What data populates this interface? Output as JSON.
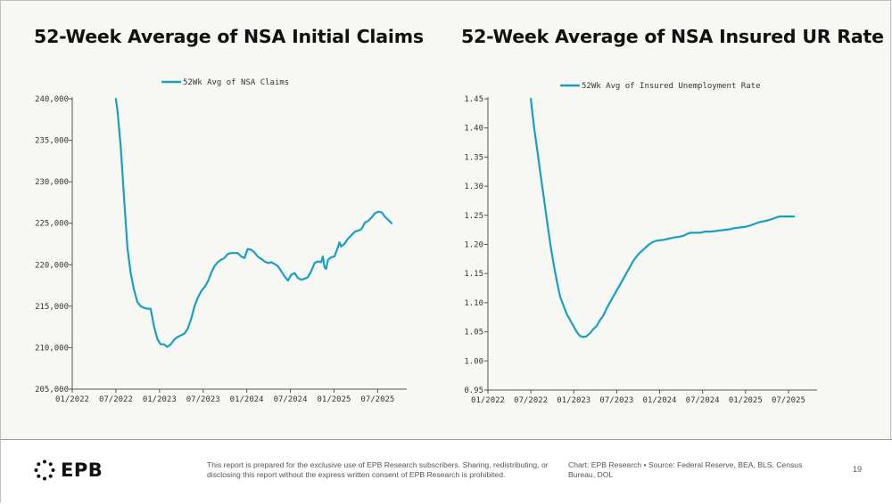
{
  "charts": [
    {
      "title": "52-Week Average of NSA Initial Claims"
    },
    {
      "title": "52-Week Average of NSA Insured UR Rate"
    }
  ],
  "colors": {
    "series": "#1a9fc4",
    "axis": "#555555",
    "grid": "#cfcfcf",
    "text": "#333333"
  },
  "chart_data": [
    {
      "type": "line",
      "title": "52-Week Average of NSA Initial Claims",
      "xlabel": "",
      "ylabel": "",
      "ylim": [
        205000,
        240000
      ],
      "xlim": [
        "2022-01",
        "2025-11"
      ],
      "x_ticks": [
        "01/2022",
        "07/2022",
        "01/2023",
        "07/2023",
        "01/2024",
        "07/2024",
        "01/2025",
        "07/2025"
      ],
      "y_ticks": [
        "205,000",
        "210,000",
        "215,000",
        "220,000",
        "225,000",
        "230,000",
        "235,000",
        "240,000"
      ],
      "legend_position": "top-center",
      "grid": false,
      "series": [
        {
          "name": "52Wk Avg of NSA Claims",
          "points": [
            [
              "2022-07-01",
              240000
            ],
            [
              "2022-07-08",
              238500
            ],
            [
              "2022-07-22",
              234000
            ],
            [
              "2022-08-05",
              228000
            ],
            [
              "2022-08-19",
              222000
            ],
            [
              "2022-09-02",
              219000
            ],
            [
              "2022-09-16",
              217000
            ],
            [
              "2022-09-30",
              215500
            ],
            [
              "2022-10-14",
              215000
            ],
            [
              "2022-10-28",
              214800
            ],
            [
              "2022-11-11",
              214700
            ],
            [
              "2022-11-25",
              214700
            ],
            [
              "2022-12-09",
              212500
            ],
            [
              "2022-12-23",
              211000
            ],
            [
              "2023-01-06",
              210400
            ],
            [
              "2023-01-20",
              210400
            ],
            [
              "2023-02-03",
              210100
            ],
            [
              "2023-02-17",
              210400
            ],
            [
              "2023-03-03",
              211000
            ],
            [
              "2023-03-17",
              211300
            ],
            [
              "2023-03-31",
              211500
            ],
            [
              "2023-04-14",
              211700
            ],
            [
              "2023-04-28",
              212300
            ],
            [
              "2023-05-12",
              213500
            ],
            [
              "2023-05-26",
              215000
            ],
            [
              "2023-06-09",
              216000
            ],
            [
              "2023-06-23",
              216800
            ],
            [
              "2023-07-07",
              217300
            ],
            [
              "2023-07-21",
              218000
            ],
            [
              "2023-08-04",
              219000
            ],
            [
              "2023-08-18",
              219800
            ],
            [
              "2023-09-01",
              220300
            ],
            [
              "2023-09-15",
              220600
            ],
            [
              "2023-09-29",
              220800
            ],
            [
              "2023-10-13",
              221300
            ],
            [
              "2023-10-27",
              221400
            ],
            [
              "2023-11-10",
              221400
            ],
            [
              "2023-11-24",
              221400
            ],
            [
              "2023-12-08",
              221000
            ],
            [
              "2023-12-22",
              220800
            ],
            [
              "2024-01-05",
              221900
            ],
            [
              "2024-01-19",
              221800
            ],
            [
              "2024-02-02",
              221500
            ],
            [
              "2024-02-16",
              221000
            ],
            [
              "2024-03-01",
              220700
            ],
            [
              "2024-03-15",
              220400
            ],
            [
              "2024-03-29",
              220200
            ],
            [
              "2024-04-12",
              220300
            ],
            [
              "2024-04-26",
              220100
            ],
            [
              "2024-05-10",
              219800
            ],
            [
              "2024-05-24",
              219200
            ],
            [
              "2024-06-07",
              218600
            ],
            [
              "2024-06-21",
              218100
            ],
            [
              "2024-07-05",
              218800
            ],
            [
              "2024-07-19",
              219000
            ],
            [
              "2024-08-02",
              218400
            ],
            [
              "2024-08-16",
              218200
            ],
            [
              "2024-08-30",
              218300
            ],
            [
              "2024-09-13",
              218500
            ],
            [
              "2024-09-27",
              219200
            ],
            [
              "2024-10-11",
              220200
            ],
            [
              "2024-10-25",
              220400
            ],
            [
              "2024-11-08",
              220300
            ],
            [
              "2024-11-15",
              221000
            ],
            [
              "2024-11-22",
              219700
            ],
            [
              "2024-11-29",
              219500
            ],
            [
              "2024-12-06",
              220600
            ],
            [
              "2024-12-20",
              220900
            ],
            [
              "2025-01-03",
              221000
            ],
            [
              "2025-01-17",
              222100
            ],
            [
              "2025-01-24",
              222700
            ],
            [
              "2025-01-31",
              222200
            ],
            [
              "2025-02-14",
              222500
            ],
            [
              "2025-02-28",
              223100
            ],
            [
              "2025-03-14",
              223600
            ],
            [
              "2025-03-28",
              224000
            ],
            [
              "2025-04-11",
              224100
            ],
            [
              "2025-04-25",
              224300
            ],
            [
              "2025-05-09",
              225100
            ],
            [
              "2025-05-23",
              225300
            ],
            [
              "2025-06-06",
              225700
            ],
            [
              "2025-06-20",
              226200
            ],
            [
              "2025-07-04",
              226400
            ],
            [
              "2025-07-18",
              226300
            ],
            [
              "2025-08-01",
              225800
            ],
            [
              "2025-08-15",
              225400
            ],
            [
              "2025-08-29",
              225000
            ]
          ]
        }
      ]
    },
    {
      "type": "line",
      "title": "52-Week Average of NSA Insured UR Rate",
      "xlabel": "",
      "ylabel": "",
      "ylim": [
        0.95,
        1.45
      ],
      "xlim": [
        "2022-01",
        "2025-11"
      ],
      "x_ticks": [
        "01/2022",
        "07/2022",
        "01/2023",
        "07/2023",
        "01/2024",
        "07/2024",
        "01/2025",
        "07/2025"
      ],
      "y_ticks": [
        "0.95",
        "1.00",
        "1.05",
        "1.10",
        "1.15",
        "1.20",
        "1.25",
        "1.30",
        "1.35",
        "1.40",
        "1.45"
      ],
      "legend_position": "top-center",
      "grid": false,
      "series": [
        {
          "name": "52Wk Avg of Insured Unemployment Rate",
          "points": [
            [
              "2022-07-01",
              1.45
            ],
            [
              "2022-07-15",
              1.4
            ],
            [
              "2022-07-29",
              1.36
            ],
            [
              "2022-08-12",
              1.32
            ],
            [
              "2022-08-26",
              1.28
            ],
            [
              "2022-09-09",
              1.24
            ],
            [
              "2022-09-23",
              1.2
            ],
            [
              "2022-10-07",
              1.165
            ],
            [
              "2022-10-21",
              1.135
            ],
            [
              "2022-11-04",
              1.11
            ],
            [
              "2022-11-18",
              1.095
            ],
            [
              "2022-12-02",
              1.08
            ],
            [
              "2022-12-16",
              1.07
            ],
            [
              "2022-12-30",
              1.06
            ],
            [
              "2023-01-13",
              1.05
            ],
            [
              "2023-01-27",
              1.043
            ],
            [
              "2023-02-10",
              1.041
            ],
            [
              "2023-02-24",
              1.042
            ],
            [
              "2023-03-10",
              1.048
            ],
            [
              "2023-03-24",
              1.055
            ],
            [
              "2023-04-07",
              1.06
            ],
            [
              "2023-04-21",
              1.07
            ],
            [
              "2023-05-05",
              1.078
            ],
            [
              "2023-05-19",
              1.09
            ],
            [
              "2023-06-02",
              1.1
            ],
            [
              "2023-06-16",
              1.11
            ],
            [
              "2023-06-30",
              1.12
            ],
            [
              "2023-07-14",
              1.13
            ],
            [
              "2023-07-28",
              1.14
            ],
            [
              "2023-08-11",
              1.15
            ],
            [
              "2023-08-25",
              1.16
            ],
            [
              "2023-09-08",
              1.17
            ],
            [
              "2023-09-22",
              1.178
            ],
            [
              "2023-10-06",
              1.185
            ],
            [
              "2023-10-20",
              1.19
            ],
            [
              "2023-11-03",
              1.195
            ],
            [
              "2023-11-17",
              1.2
            ],
            [
              "2023-12-01",
              1.204
            ],
            [
              "2023-12-15",
              1.206
            ],
            [
              "2023-12-29",
              1.207
            ],
            [
              "2024-01-19",
              1.208
            ],
            [
              "2024-02-09",
              1.21
            ],
            [
              "2024-03-01",
              1.212
            ],
            [
              "2024-03-22",
              1.213
            ],
            [
              "2024-04-12",
              1.215
            ],
            [
              "2024-04-26",
              1.218
            ],
            [
              "2024-05-10",
              1.22
            ],
            [
              "2024-05-31",
              1.22
            ],
            [
              "2024-06-21",
              1.22
            ],
            [
              "2024-07-12",
              1.222
            ],
            [
              "2024-08-02",
              1.222
            ],
            [
              "2024-08-23",
              1.223
            ],
            [
              "2024-09-13",
              1.224
            ],
            [
              "2024-10-04",
              1.225
            ],
            [
              "2024-10-25",
              1.226
            ],
            [
              "2024-11-15",
              1.228
            ],
            [
              "2024-12-06",
              1.229
            ],
            [
              "2024-12-27",
              1.23
            ],
            [
              "2025-01-17",
              1.232
            ],
            [
              "2025-02-07",
              1.235
            ],
            [
              "2025-02-28",
              1.238
            ],
            [
              "2025-03-21",
              1.24
            ],
            [
              "2025-04-11",
              1.242
            ],
            [
              "2025-05-02",
              1.245
            ],
            [
              "2025-05-23",
              1.248
            ],
            [
              "2025-06-13",
              1.248
            ],
            [
              "2025-07-04",
              1.248
            ],
            [
              "2025-07-25",
              1.248
            ]
          ]
        }
      ]
    }
  ],
  "footer": {
    "logo_text": "EPB",
    "disclaimer": "This report is prepared for the exclusive use of EPB Research subscribers. Sharing, redistributing, or disclosing this report without the express written consent of EPB Research is prohibited.",
    "source": "Chart: EPB Research  •  Source: Federal Reserve, BEA, BLS, Census Bureau, DOL",
    "page_number": "19"
  }
}
